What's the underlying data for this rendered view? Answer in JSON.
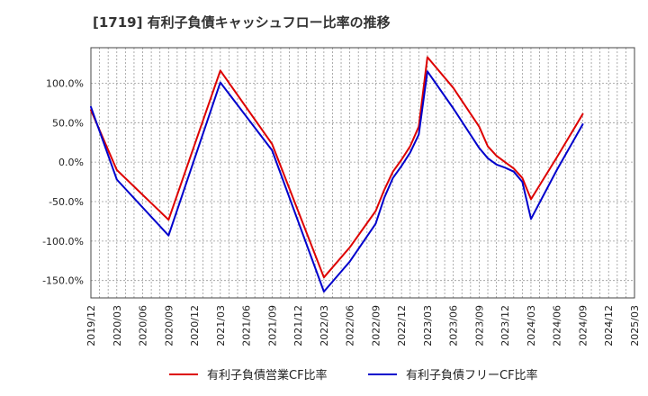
{
  "chart_data": {
    "type": "line",
    "title": "[1719]  有利子負債キャッシュフロー比率の推移",
    "x_ticks": [
      "2019/12",
      "2020/03",
      "2020/06",
      "2020/09",
      "2020/12",
      "2021/03",
      "2021/06",
      "2021/09",
      "2021/12",
      "2022/03",
      "2022/06",
      "2022/09",
      "2022/12",
      "2023/03",
      "2023/06",
      "2023/09",
      "2023/12",
      "2024/03",
      "2024/06",
      "2024/09",
      "2024/12",
      "2025/03"
    ],
    "y_ticks": [
      100,
      50,
      0,
      -50,
      -100,
      -150
    ],
    "y_tick_labels": [
      "100.0%",
      "50.0%",
      "0.0%",
      "-50.0%",
      "-100.0%",
      "-150.0%"
    ],
    "ylim": [
      -172,
      145
    ],
    "grid": true,
    "legend_position": "bottom",
    "series": [
      {
        "name": "有利子負債営業CF比率",
        "color": "#dd0000",
        "points": [
          [
            "2019/12",
            66
          ],
          [
            "2020/03",
            -10
          ],
          [
            "2020/09",
            -73
          ],
          [
            "2021/03",
            116
          ],
          [
            "2021/09",
            23
          ],
          [
            "2022/03",
            -146
          ],
          [
            "2022/06",
            -108
          ],
          [
            "2022/09",
            -62
          ],
          [
            "2022/10",
            -35
          ],
          [
            "2022/11",
            -12
          ],
          [
            "2022/12",
            3
          ],
          [
            "2023/01",
            20
          ],
          [
            "2023/02",
            45
          ],
          [
            "2023/03",
            133
          ],
          [
            "2023/06",
            94
          ],
          [
            "2023/09",
            45
          ],
          [
            "2023/10",
            20
          ],
          [
            "2023/11",
            8
          ],
          [
            "2023/12",
            0
          ],
          [
            "2024/01",
            -8
          ],
          [
            "2024/02",
            -20
          ],
          [
            "2024/03",
            -47
          ],
          [
            "2024/06",
            6
          ],
          [
            "2024/09",
            61
          ]
        ]
      },
      {
        "name": "有利子負債フリーCF比率",
        "color": "#0000cc",
        "points": [
          [
            "2019/12",
            70
          ],
          [
            "2020/03",
            -22
          ],
          [
            "2020/09",
            -93
          ],
          [
            "2021/03",
            101
          ],
          [
            "2021/09",
            15
          ],
          [
            "2022/03",
            -164
          ],
          [
            "2022/06",
            -126
          ],
          [
            "2022/09",
            -78
          ],
          [
            "2022/10",
            -45
          ],
          [
            "2022/11",
            -20
          ],
          [
            "2022/12",
            -5
          ],
          [
            "2023/01",
            12
          ],
          [
            "2023/02",
            35
          ],
          [
            "2023/03",
            115
          ],
          [
            "2023/06",
            68
          ],
          [
            "2023/09",
            18
          ],
          [
            "2023/10",
            5
          ],
          [
            "2023/11",
            -3
          ],
          [
            "2023/12",
            -7
          ],
          [
            "2024/01",
            -12
          ],
          [
            "2024/02",
            -25
          ],
          [
            "2024/03",
            -72
          ],
          [
            "2024/06",
            -10
          ],
          [
            "2024/09",
            48
          ]
        ]
      }
    ]
  }
}
